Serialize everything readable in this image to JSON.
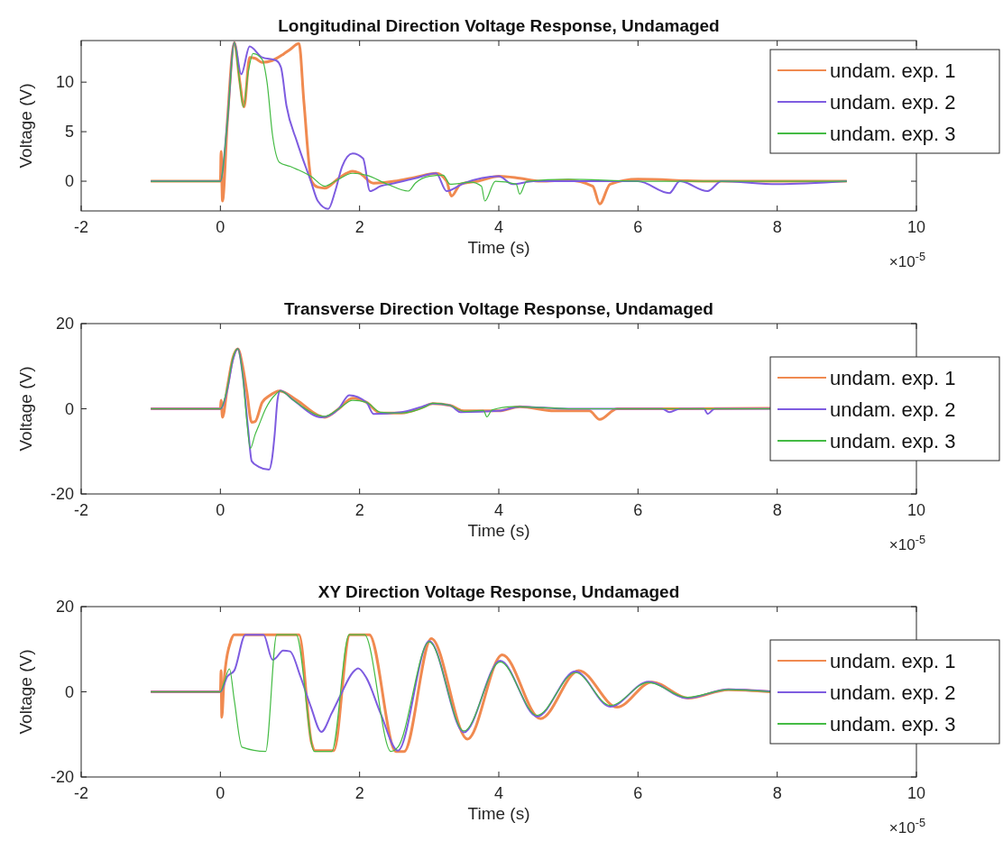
{
  "chart_data": [
    {
      "type": "line",
      "title": "Longitudinal Direction Voltage Response, Undamaged",
      "xlabel": "Time (s)",
      "ylabel": "Voltage (V)",
      "annotations": [
        "×10$^{-5}$"
      ],
      "xlim": [
        -2,
        10
      ],
      "xticks": [
        -2,
        0,
        2,
        4,
        6,
        8,
        10
      ],
      "ylim": [
        -3,
        14.2
      ],
      "yticks": [
        0,
        5,
        10
      ],
      "legend": "top right",
      "series": [
        {
          "name": "undam. exp. 1",
          "color": "#f08a50",
          "x": [
            -1,
            0,
            0.01,
            0.03,
            0.1,
            0.2,
            0.28,
            0.34,
            0.42,
            0.5,
            0.6,
            0.75,
            0.9,
            1.0,
            1.13,
            1.2,
            1.31,
            1.4,
            1.5,
            1.7,
            1.9,
            2.0,
            2.2,
            2.5,
            2.8,
            3.1,
            3.25,
            3.32,
            3.45,
            3.7,
            4.0,
            4.3,
            4.6,
            5.0,
            5.35,
            5.45,
            5.6,
            6.0,
            7.0,
            8.0,
            9.0
          ],
          "values": [
            0,
            0,
            3,
            -2,
            6,
            14,
            10,
            7.5,
            12.5,
            12.4,
            12,
            12.2,
            12.8,
            13.3,
            13.9,
            8,
            0,
            -0.6,
            -0.7,
            0.3,
            1,
            0.8,
            -0.2,
            0,
            0.4,
            0.8,
            0,
            -1.5,
            -0.3,
            0,
            0.5,
            0.3,
            0,
            0.1,
            -0.5,
            -2.3,
            -0.3,
            0.2,
            0,
            0,
            0
          ]
        },
        {
          "name": "undam. exp. 2",
          "color": "#7e5ce0",
          "x": [
            -1,
            0,
            0.1,
            0.2,
            0.3,
            0.42,
            0.6,
            0.8,
            0.87,
            0.95,
            1.1,
            1.3,
            1.4,
            1.55,
            1.65,
            1.75,
            1.9,
            2.05,
            2.15,
            2.3,
            2.5,
            2.8,
            3.1,
            3.25,
            3.5,
            4.0,
            4.2,
            4.5,
            6.0,
            6.45,
            6.6,
            7.0,
            7.2,
            8.0,
            9.0
          ],
          "values": [
            0,
            0,
            6,
            14,
            10.8,
            13.6,
            12.5,
            12.2,
            11.5,
            7.6,
            4,
            0,
            -2,
            -2.8,
            -1,
            1.5,
            2.8,
            2.3,
            -1,
            -0.5,
            -0.2,
            0.3,
            0.8,
            -1,
            -0.2,
            0.5,
            -0.3,
            0,
            0,
            -1.2,
            0,
            -1,
            0,
            -0.3,
            0
          ]
        },
        {
          "name": "undam. exp. 3",
          "color": "#44bb44",
          "x": [
            -1,
            0,
            0.1,
            0.2,
            0.26,
            0.33,
            0.4,
            0.47,
            0.6,
            0.67,
            0.75,
            0.85,
            1.0,
            1.1,
            1.3,
            1.5,
            1.65,
            1.9,
            2.1,
            2.4,
            2.7,
            2.8,
            3.0,
            3.2,
            3.3,
            3.6,
            3.75,
            3.8,
            3.95,
            4.25,
            4.3,
            4.4,
            5.0,
            6.0,
            9.0
          ],
          "values": [
            0,
            0,
            6,
            14,
            11,
            7.5,
            11,
            12.9,
            12.3,
            10,
            4.6,
            1.9,
            1.5,
            1.2,
            0.5,
            -0.5,
            0,
            0.8,
            0.6,
            -0.3,
            -1,
            -0.2,
            0.5,
            0.6,
            -0.3,
            -0.1,
            -0.5,
            -2,
            0,
            -0.3,
            -1.3,
            0,
            0.2,
            0,
            0
          ]
        }
      ]
    },
    {
      "type": "line",
      "title": "Transverse Direction Voltage Response, Undamaged",
      "xlabel": "Time (s)",
      "ylabel": "Voltage (V)",
      "annotations": [
        "×10$^{-5}$"
      ],
      "xlim": [
        -2,
        10
      ],
      "xticks": [
        -2,
        0,
        2,
        4,
        6,
        8,
        10
      ],
      "ylim": [
        -20,
        20
      ],
      "yticks": [
        -20,
        0,
        20
      ],
      "legend": "right",
      "series": [
        {
          "name": "undam. exp. 1",
          "color": "#f08a50",
          "x": [
            -1,
            0,
            0.01,
            0.03,
            0.1,
            0.18,
            0.25,
            0.32,
            0.38,
            0.45,
            0.5,
            0.6,
            0.7,
            0.85,
            1.1,
            1.4,
            1.5,
            1.7,
            1.9,
            2.1,
            2.3,
            2.6,
            2.9,
            3.05,
            3.3,
            3.5,
            4.0,
            4.3,
            4.8,
            5.3,
            5.45,
            5.7,
            6.5,
            7.9
          ],
          "values": [
            0,
            0,
            2,
            -2,
            5,
            12,
            14.1,
            10,
            4,
            -3.2,
            -3,
            1.5,
            3,
            4.2,
            2,
            -1.5,
            -2,
            0,
            2.5,
            1.5,
            -1,
            -1,
            0.3,
            1.2,
            0.8,
            -0.5,
            -0.5,
            0.5,
            -0.5,
            -0.5,
            -2.5,
            0,
            0,
            0.1
          ]
        },
        {
          "name": "undam. exp. 2",
          "color": "#7e5ce0",
          "x": [
            -1,
            0,
            0.1,
            0.18,
            0.25,
            0.32,
            0.4,
            0.45,
            0.55,
            0.7,
            0.74,
            0.78,
            0.82,
            0.86,
            1.05,
            1.45,
            1.7,
            1.85,
            2.1,
            2.2,
            2.6,
            2.9,
            3.05,
            3.3,
            3.45,
            4.0,
            4.3,
            5.0,
            6.35,
            6.45,
            6.6,
            6.95,
            7.0,
            7.1,
            7.9
          ],
          "values": [
            0,
            0,
            4.5,
            11.5,
            14.1,
            8,
            -5,
            -12.3,
            -13.6,
            -14.3,
            -12,
            -6,
            2,
            4.3,
            2,
            -2,
            0,
            3.2,
            1.5,
            -1.2,
            -0.8,
            0.5,
            1.2,
            0.8,
            -0.8,
            -0.5,
            0.5,
            0,
            0,
            -0.8,
            0,
            0,
            -1.2,
            0,
            0
          ]
        },
        {
          "name": "undam. exp. 3",
          "color": "#44bb44",
          "x": [
            -1,
            0,
            0.1,
            0.18,
            0.25,
            0.32,
            0.38,
            0.43,
            0.5,
            0.55,
            0.65,
            0.8,
            0.86,
            1.05,
            1.4,
            1.5,
            1.7,
            1.9,
            2.1,
            2.3,
            2.6,
            2.95,
            3.05,
            3.3,
            3.5,
            3.78,
            3.83,
            3.9,
            4.2,
            4.6,
            5.0,
            7.9
          ],
          "values": [
            0,
            0,
            5,
            12,
            14.1,
            8,
            -3,
            -9.3,
            -6,
            -4,
            0,
            3.5,
            4.2,
            2,
            -1.5,
            -1.8,
            0,
            2,
            1.5,
            -0.8,
            -1,
            0.5,
            1.3,
            0.8,
            -0.6,
            -0.4,
            -1.9,
            -0.3,
            0.5,
            0.3,
            0,
            0
          ]
        }
      ]
    },
    {
      "type": "line",
      "title": "XY Direction Voltage Response, Undamaged",
      "xlabel": "Time (s)",
      "ylabel": "Voltage (V)",
      "annotations": [
        "×10$^{-5}$"
      ],
      "xlim": [
        -2,
        10
      ],
      "xticks": [
        -2,
        0,
        2,
        4,
        6,
        8,
        10
      ],
      "ylim": [
        -20,
        20
      ],
      "yticks": [
        -20,
        0,
        20
      ],
      "legend": "right",
      "series": [
        {
          "name": "undam. exp. 1",
          "color": "#f08a50",
          "x": [
            -1,
            0,
            0.01,
            0.02,
            0.05,
            0.15,
            0.2,
            1.13,
            1.31,
            1.36,
            1.63,
            1.86,
            2.14,
            2.52,
            2.64,
            3.03,
            3.55,
            4.05,
            4.6,
            5.15,
            5.7,
            6.2,
            6.72,
            7.3,
            7.9
          ],
          "values": [
            0,
            0,
            5,
            -6,
            2,
            12,
            13.4,
            13.4,
            -12,
            -13.8,
            -13.8,
            13.4,
            13.4,
            -14,
            -14,
            12.5,
            -11.1,
            8.7,
            -6.3,
            5,
            -3.6,
            2.3,
            -1.5,
            0.5,
            0
          ]
        },
        {
          "name": "undam. exp. 2",
          "color": "#7e5ce0",
          "x": [
            -1,
            0,
            0.1,
            0.2,
            0.36,
            0.62,
            0.75,
            0.8,
            0.9,
            1.0,
            1.15,
            1.3,
            1.45,
            1.6,
            1.72,
            1.9,
            1.98,
            2.1,
            2.3,
            2.55,
            3.0,
            3.5,
            4.02,
            4.55,
            5.1,
            5.6,
            6.15,
            6.7,
            7.3,
            7.9
          ],
          "values": [
            0,
            0,
            3.6,
            5,
            13.4,
            13.4,
            7.5,
            8,
            9.7,
            9.5,
            3.6,
            -3.5,
            -9.4,
            -5,
            -1,
            4.5,
            5.5,
            3.2,
            -5,
            -13.8,
            11.9,
            -9.5,
            7.3,
            -5.8,
            4.8,
            -3.5,
            2.4,
            -1.5,
            0.6,
            0.1
          ]
        },
        {
          "name": "undam. exp. 3",
          "color": "#44bb44",
          "x": [
            -1,
            0,
            0.05,
            0.13,
            0.2,
            0.31,
            0.65,
            0.81,
            1.09,
            1.35,
            1.6,
            1.85,
            2.07,
            2.45,
            2.55,
            3.0,
            3.5,
            4.02,
            4.55,
            5.1,
            5.6,
            6.15,
            6.7,
            7.3,
            7.9
          ],
          "values": [
            0,
            0,
            2,
            5.4,
            -2,
            -13,
            -14,
            13.4,
            13.4,
            -14,
            -14,
            13.4,
            13.4,
            -14,
            -13,
            11.7,
            -9.2,
            7,
            -5.5,
            4.5,
            -3.2,
            2.2,
            -1.3,
            0.5,
            0
          ]
        }
      ]
    }
  ]
}
